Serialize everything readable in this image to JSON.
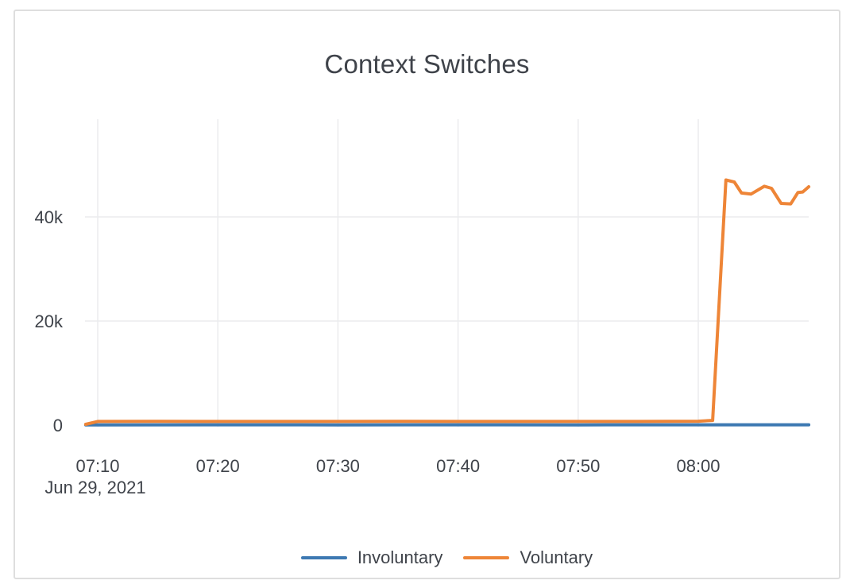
{
  "title": "Context Switches",
  "legend": {
    "items": [
      {
        "label": "Involuntary",
        "color": "#3d79b2"
      },
      {
        "label": "Voluntary",
        "color": "#ee8537"
      }
    ]
  },
  "colors": {
    "involuntary": "#3d79b2",
    "voluntary": "#ee8537",
    "gridline": "#ebecee",
    "text": "#3f434a",
    "card_border": "#dedede",
    "background": "#ffffff"
  },
  "chart_data": {
    "type": "line",
    "title": "Context Switches",
    "xlabel": "",
    "ylabel": "",
    "grid": {
      "vertical": true,
      "horizontal": true
    },
    "legend_position": "bottom-center",
    "x_axis": {
      "unit": "minutes since 07:00 on Jun 29, 2021",
      "date_label": "Jun 29, 2021",
      "range": [
        9,
        69.2
      ],
      "ticks": [
        {
          "t": 10,
          "label": "07:10"
        },
        {
          "t": 20,
          "label": "07:20"
        },
        {
          "t": 30,
          "label": "07:30"
        },
        {
          "t": 40,
          "label": "07:40"
        },
        {
          "t": 50,
          "label": "07:50"
        },
        {
          "t": 60,
          "label": "08:00"
        }
      ]
    },
    "y_axis": {
      "unit": "context switches",
      "range": [
        0,
        58800
      ],
      "ticks": [
        {
          "v": 0,
          "label": "0"
        },
        {
          "v": 20000,
          "label": "20k"
        },
        {
          "v": 40000,
          "label": "40k"
        }
      ]
    },
    "series": [
      {
        "name": "Involuntary",
        "color": "#3d79b2",
        "points": [
          [
            9,
            50
          ],
          [
            20,
            55
          ],
          [
            30,
            50
          ],
          [
            40,
            55
          ],
          [
            50,
            50
          ],
          [
            60,
            55
          ],
          [
            69.2,
            60
          ]
        ]
      },
      {
        "name": "Voluntary",
        "color": "#ee8537",
        "points": [
          [
            9,
            150
          ],
          [
            10,
            700
          ],
          [
            15,
            710
          ],
          [
            20,
            700
          ],
          [
            25,
            705
          ],
          [
            30,
            700
          ],
          [
            35,
            710
          ],
          [
            40,
            700
          ],
          [
            45,
            700
          ],
          [
            50,
            705
          ],
          [
            55,
            700
          ],
          [
            60,
            750
          ],
          [
            61.2,
            900
          ],
          [
            62.3,
            47100
          ],
          [
            63.0,
            46700
          ],
          [
            63.6,
            44600
          ],
          [
            64.4,
            44400
          ],
          [
            65.5,
            45900
          ],
          [
            66.1,
            45500
          ],
          [
            66.9,
            42600
          ],
          [
            67.7,
            42500
          ],
          [
            68.3,
            44700
          ],
          [
            68.7,
            44800
          ],
          [
            69.2,
            45800
          ]
        ]
      }
    ]
  }
}
